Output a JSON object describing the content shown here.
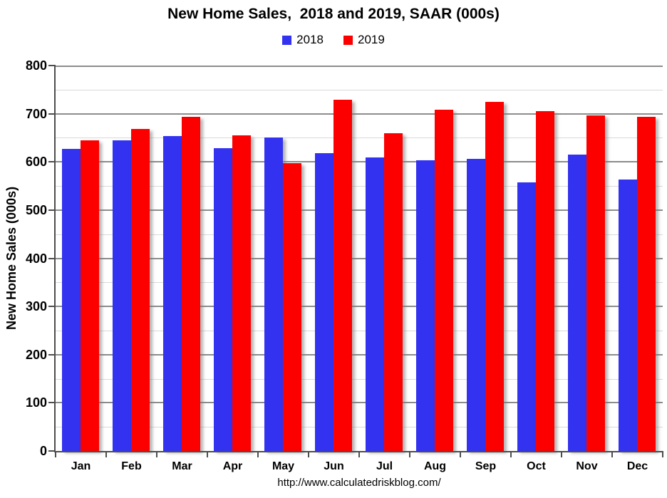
{
  "page": {
    "background": "#FFFFFF"
  },
  "footer": {
    "source_url": "http://www.calculatedriskblog.com/"
  },
  "chart_data": {
    "type": "bar",
    "title": "New Home Sales,  2018 and 2019, SAAR (000s)",
    "ylabel": "New Home Sales (000s)",
    "xlabel": "",
    "ylim": [
      0,
      800
    ],
    "ytick_step": 100,
    "minor_ytick_step": 50,
    "ytick_labels": [
      "0",
      "100",
      "200",
      "300",
      "400",
      "500",
      "600",
      "700",
      "800"
    ],
    "grid": true,
    "legend_position": "top-center",
    "categories": [
      "Jan",
      "Feb",
      "Mar",
      "Apr",
      "May",
      "Jun",
      "Jul",
      "Aug",
      "Sep",
      "Oct",
      "Nov",
      "Dec"
    ],
    "series": [
      {
        "name": "2018",
        "color": "#3232F0",
        "values": [
          627,
          644,
          653,
          629,
          650,
          618,
          609,
          604,
          607,
          557,
          615,
          564
        ]
      },
      {
        "name": "2019",
        "color": "#FC0000",
        "values": [
          644,
          668,
          693,
          655,
          598,
          729,
          660,
          708,
          724,
          706,
          697,
          694
        ]
      }
    ],
    "colors": {
      "major_grid": "#8C8C8C",
      "minor_grid": "#D9D9D9",
      "axis": "#4D4D4D",
      "text": "#000000"
    }
  }
}
